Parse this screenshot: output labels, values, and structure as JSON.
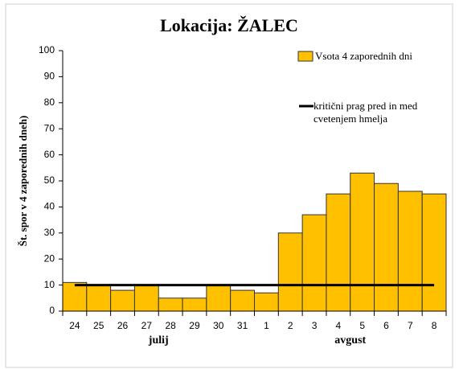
{
  "chart_data": {
    "type": "bar",
    "title": "Lokacija: ŽALEC",
    "y_label": "Št. spor v 4 zaporednih dneh)",
    "categories": [
      "24",
      "25",
      "26",
      "27",
      "28",
      "29",
      "30",
      "31",
      "1",
      "2",
      "3",
      "4",
      "5",
      "6",
      "7",
      "8"
    ],
    "groups": [
      {
        "label": "julij",
        "count": 8
      },
      {
        "label": "avgust",
        "count": 8
      }
    ],
    "series": [
      {
        "name": "Vsota 4 zaporednih dni",
        "color": "#ffc000",
        "values": [
          11,
          10,
          8,
          10,
          5,
          5,
          10,
          8,
          7,
          30,
          37,
          45,
          53,
          49,
          46,
          45
        ]
      }
    ],
    "threshold": {
      "name": "kritični prag pred in med cvetenjem hmelja",
      "value": 10,
      "color": "#000000"
    },
    "ylim": [
      0,
      100
    ],
    "yticks": [
      0,
      10,
      20,
      30,
      40,
      50,
      60,
      70,
      80,
      90,
      100
    ]
  }
}
